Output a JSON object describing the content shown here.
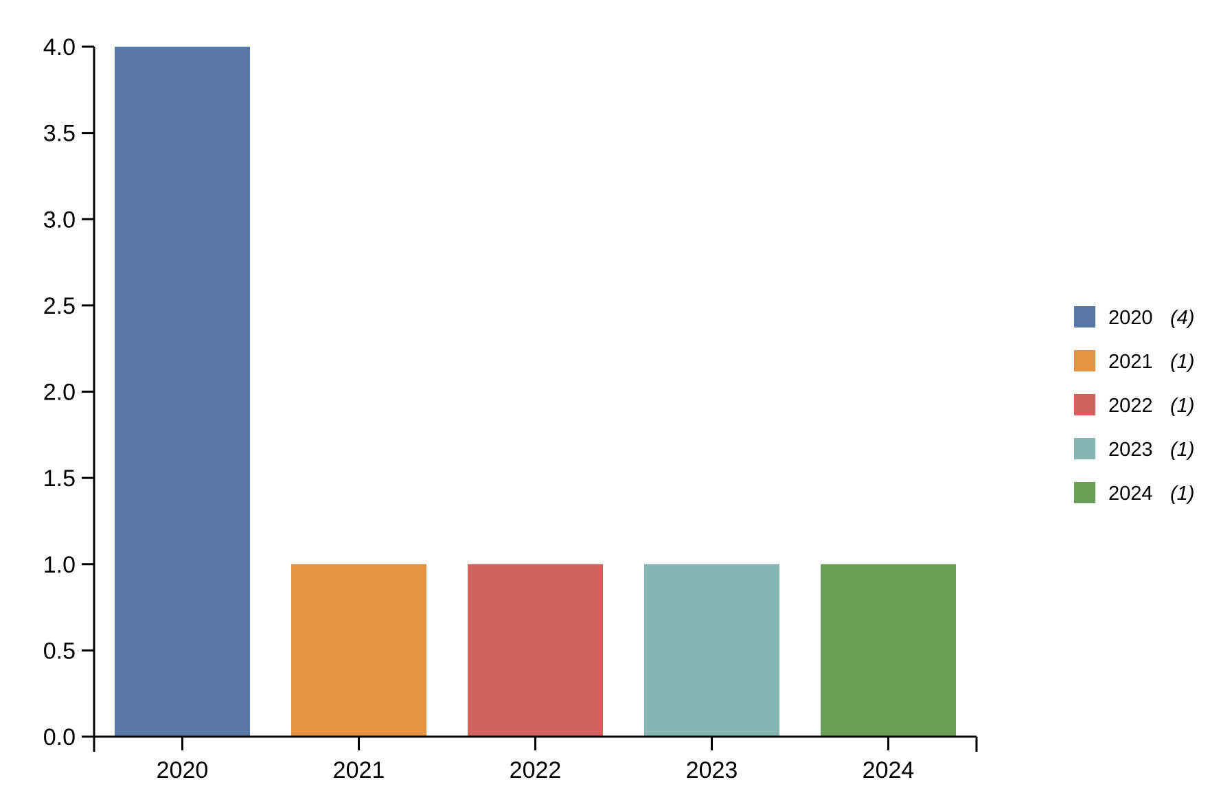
{
  "chart_data": {
    "type": "bar",
    "categories": [
      "2020",
      "2021",
      "2022",
      "2023",
      "2024"
    ],
    "values": [
      4,
      1,
      1,
      1,
      1
    ],
    "colors": [
      "#5778a4",
      "#e49444",
      "#d1615d",
      "#85b6b2",
      "#6a9f58"
    ],
    "ylim": [
      0,
      4
    ],
    "yticks": [
      "0.0",
      "0.5",
      "1.0",
      "1.5",
      "2.0",
      "2.5",
      "3.0",
      "3.5",
      "4.0"
    ],
    "title": "",
    "xlabel": "",
    "ylabel": "",
    "grid": false,
    "legend": {
      "position": "right",
      "items": [
        {
          "label": "2020",
          "count": "(4)"
        },
        {
          "label": "2021",
          "count": "(1)"
        },
        {
          "label": "2022",
          "count": "(1)"
        },
        {
          "label": "2023",
          "count": "(1)"
        },
        {
          "label": "2024",
          "count": "(1)"
        }
      ]
    }
  }
}
